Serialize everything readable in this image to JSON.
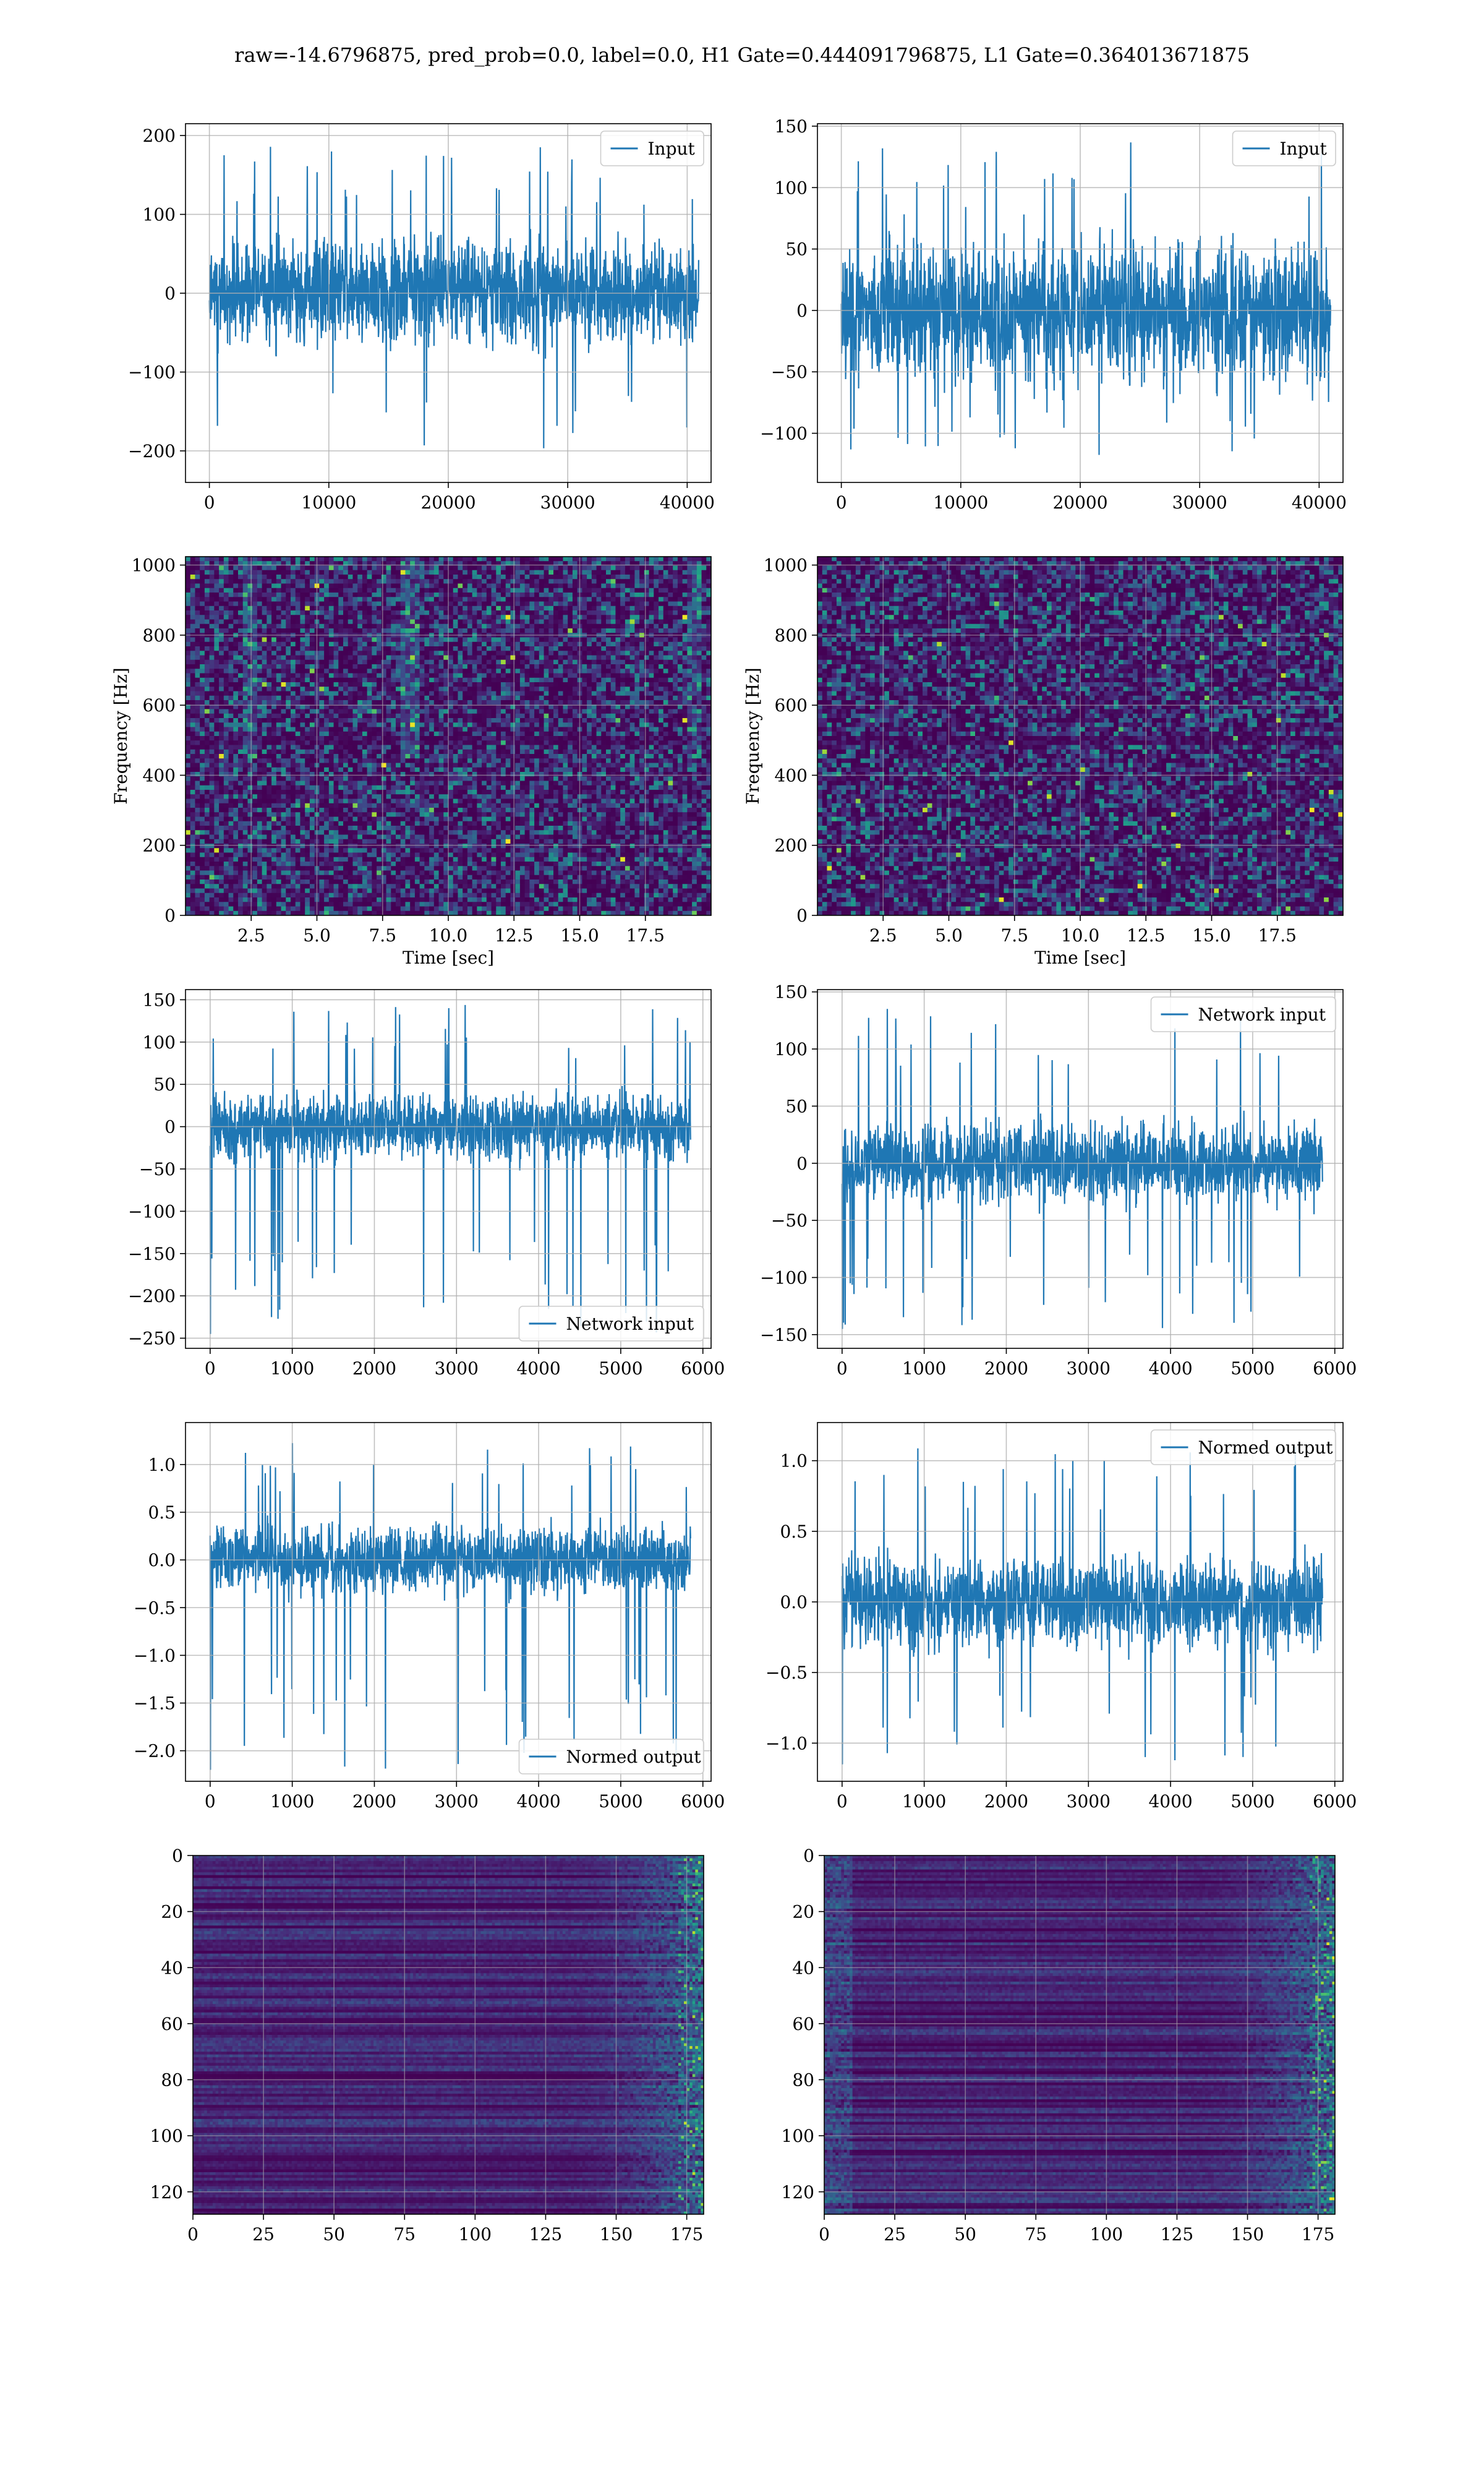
{
  "figure_title": "raw=-14.6796875, pred_prob=0.0, label=0.0, H1 Gate=0.444091796875, L1 Gate=0.364013671875",
  "colors": {
    "line": "#1f77b4",
    "grid": "#b0b0b0",
    "viridis_dark": "#440154",
    "viridis_mid": "#21918c",
    "viridis_bright": "#fde725"
  },
  "chart_data": [
    {
      "id": "h1-input",
      "type": "line",
      "legend": "Input",
      "legend_loc": "top-right",
      "xlim": [
        -2000,
        42000
      ],
      "ylim": [
        -240,
        215
      ],
      "xticks": [
        0,
        10000,
        20000,
        30000,
        40000
      ],
      "yticks": [
        -200,
        -100,
        0,
        100,
        200
      ],
      "x_range": [
        0,
        40960
      ],
      "envelope": {
        "upper": 85,
        "lower": -85,
        "spike_max": 190,
        "spike_min": -215
      },
      "grid": true
    },
    {
      "id": "l1-input",
      "type": "line",
      "legend": "Input",
      "legend_loc": "top-right",
      "xlim": [
        -2000,
        42000
      ],
      "ylim": [
        -140,
        152
      ],
      "xticks": [
        0,
        10000,
        20000,
        30000,
        40000
      ],
      "yticks": [
        -100,
        -50,
        0,
        50,
        100,
        150
      ],
      "x_range": [
        0,
        40960
      ],
      "envelope": {
        "upper": 70,
        "lower": -70,
        "spike_max": 138,
        "spike_min": -122
      },
      "grid": true
    },
    {
      "id": "h1-spectrogram",
      "type": "heatmap",
      "xlabel": "Time [sec]",
      "ylabel": "Frequency [Hz]",
      "xlim": [
        0,
        20
      ],
      "ylim": [
        0,
        1024
      ],
      "xticks": [
        2.5,
        5.0,
        7.5,
        10.0,
        12.5,
        15.0,
        17.5
      ],
      "xtick_labels": [
        "2.5",
        "5.0",
        "7.5",
        "10.0",
        "12.5",
        "15.0",
        "17.5"
      ],
      "yticks": [
        0,
        200,
        400,
        600,
        800,
        1000
      ],
      "colormap": "viridis",
      "grid": true
    },
    {
      "id": "l1-spectrogram",
      "type": "heatmap",
      "xlabel": "Time [sec]",
      "ylabel": "Frequency [Hz]",
      "xlim": [
        0,
        20
      ],
      "ylim": [
        0,
        1024
      ],
      "xticks": [
        2.5,
        5.0,
        7.5,
        10.0,
        12.5,
        15.0,
        17.5
      ],
      "xtick_labels": [
        "2.5",
        "5.0",
        "7.5",
        "10.0",
        "12.5",
        "15.0",
        "17.5"
      ],
      "yticks": [
        0,
        200,
        400,
        600,
        800,
        1000
      ],
      "colormap": "viridis",
      "grid": true
    },
    {
      "id": "h1-network-input",
      "type": "line",
      "legend": "Network input",
      "legend_loc": "bottom-right",
      "xlim": [
        -300,
        6100
      ],
      "ylim": [
        -262,
        162
      ],
      "xticks": [
        0,
        1000,
        2000,
        3000,
        4000,
        5000,
        6000
      ],
      "yticks": [
        -250,
        -200,
        -150,
        -100,
        -50,
        0,
        50,
        100,
        150
      ],
      "x_range": [
        0,
        5850
      ],
      "envelope": {
        "upper": 50,
        "lower": -50,
        "spike_max": 145,
        "spike_min": -245
      },
      "grid": true
    },
    {
      "id": "l1-network-input",
      "type": "line",
      "legend": "Network input",
      "legend_loc": "top-right",
      "xlim": [
        -300,
        6100
      ],
      "ylim": [
        -162,
        152
      ],
      "xticks": [
        0,
        1000,
        2000,
        3000,
        4000,
        5000,
        6000
      ],
      "yticks": [
        -150,
        -100,
        -50,
        0,
        50,
        100,
        150
      ],
      "x_range": [
        0,
        5850
      ],
      "envelope": {
        "upper": 45,
        "lower": -45,
        "spike_max": 140,
        "spike_min": -145
      },
      "grid": true
    },
    {
      "id": "h1-normed-output",
      "type": "line",
      "legend": "Normed output",
      "legend_loc": "bottom-right",
      "xlim": [
        -300,
        6100
      ],
      "ylim": [
        -2.32,
        1.44
      ],
      "xticks": [
        0,
        1000,
        2000,
        3000,
        4000,
        5000,
        6000
      ],
      "yticks": [
        -2.0,
        -1.5,
        -1.0,
        -0.5,
        0.0,
        0.5,
        1.0
      ],
      "ytick_labels": [
        "−2.0",
        "−1.5",
        "−1.0",
        "−0.5",
        "0.0",
        "0.5",
        "1.0"
      ],
      "x_range": [
        0,
        5850
      ],
      "envelope": {
        "upper": 0.45,
        "lower": -0.45,
        "spike_max": 1.28,
        "spike_min": -2.2
      },
      "grid": true
    },
    {
      "id": "l1-normed-output",
      "type": "line",
      "legend": "Normed output",
      "legend_loc": "top-right",
      "xlim": [
        -300,
        6100
      ],
      "ylim": [
        -1.27,
        1.27
      ],
      "xticks": [
        0,
        1000,
        2000,
        3000,
        4000,
        5000,
        6000
      ],
      "yticks": [
        -1.0,
        -0.5,
        0.0,
        0.5,
        1.0
      ],
      "ytick_labels": [
        "−1.0",
        "−0.5",
        "0.0",
        "0.5",
        "1.0"
      ],
      "x_range": [
        0,
        5850
      ],
      "envelope": {
        "upper": 0.4,
        "lower": -0.4,
        "spike_max": 1.15,
        "spike_min": -1.15
      },
      "grid": true
    },
    {
      "id": "h1-feature-map",
      "type": "heatmap",
      "xlim": [
        0,
        181
      ],
      "ylim": [
        128,
        0
      ],
      "xticks": [
        0,
        25,
        50,
        75,
        100,
        125,
        150,
        175
      ],
      "yticks": [
        0,
        20,
        40,
        60,
        80,
        100,
        120
      ],
      "colormap": "viridis",
      "grid": true
    },
    {
      "id": "l1-feature-map",
      "type": "heatmap",
      "xlim": [
        0,
        181
      ],
      "ylim": [
        128,
        0
      ],
      "xticks": [
        0,
        25,
        50,
        75,
        100,
        125,
        150,
        175
      ],
      "yticks": [
        0,
        20,
        40,
        60,
        80,
        100,
        120
      ],
      "colormap": "viridis",
      "grid": true
    }
  ]
}
